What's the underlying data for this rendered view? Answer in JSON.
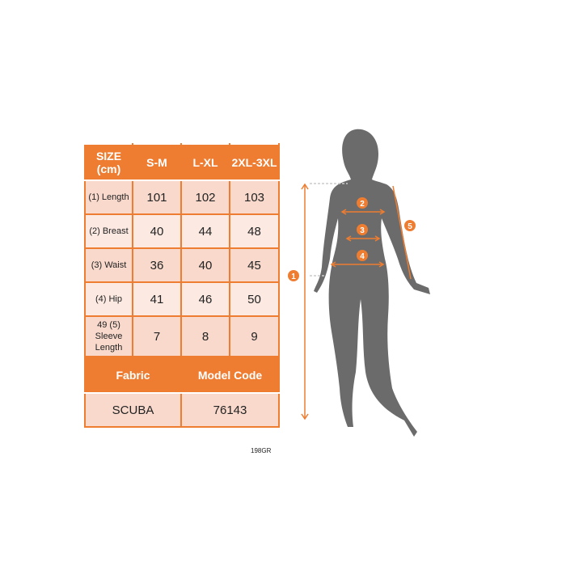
{
  "size_table": {
    "headers": [
      "SIZE (cm)",
      "S-M",
      "L-XL",
      "2XL-3XL"
    ],
    "rows": [
      {
        "label": "(1) Length",
        "values": [
          "101",
          "102",
          "103"
        ]
      },
      {
        "label": "(2) Breast",
        "values": [
          "40",
          "44",
          "48"
        ]
      },
      {
        "label": "(3) Waist",
        "values": [
          "36",
          "40",
          "45"
        ]
      },
      {
        "label": "(4) Hip",
        "values": [
          "41",
          "46",
          "50"
        ]
      },
      {
        "label": "49 (5) Sleeve Length",
        "values": [
          "7",
          "8",
          "9"
        ]
      }
    ],
    "info_headers": [
      "Fabric",
      "Model Code"
    ],
    "info_values": [
      "SCUBA",
      "76143"
    ]
  },
  "product_code": "198GR",
  "diagram": {
    "markers": [
      "1",
      "2",
      "3",
      "4",
      "5"
    ],
    "accent": "#ee7d31",
    "silhouette": "#6b6b6b"
  }
}
